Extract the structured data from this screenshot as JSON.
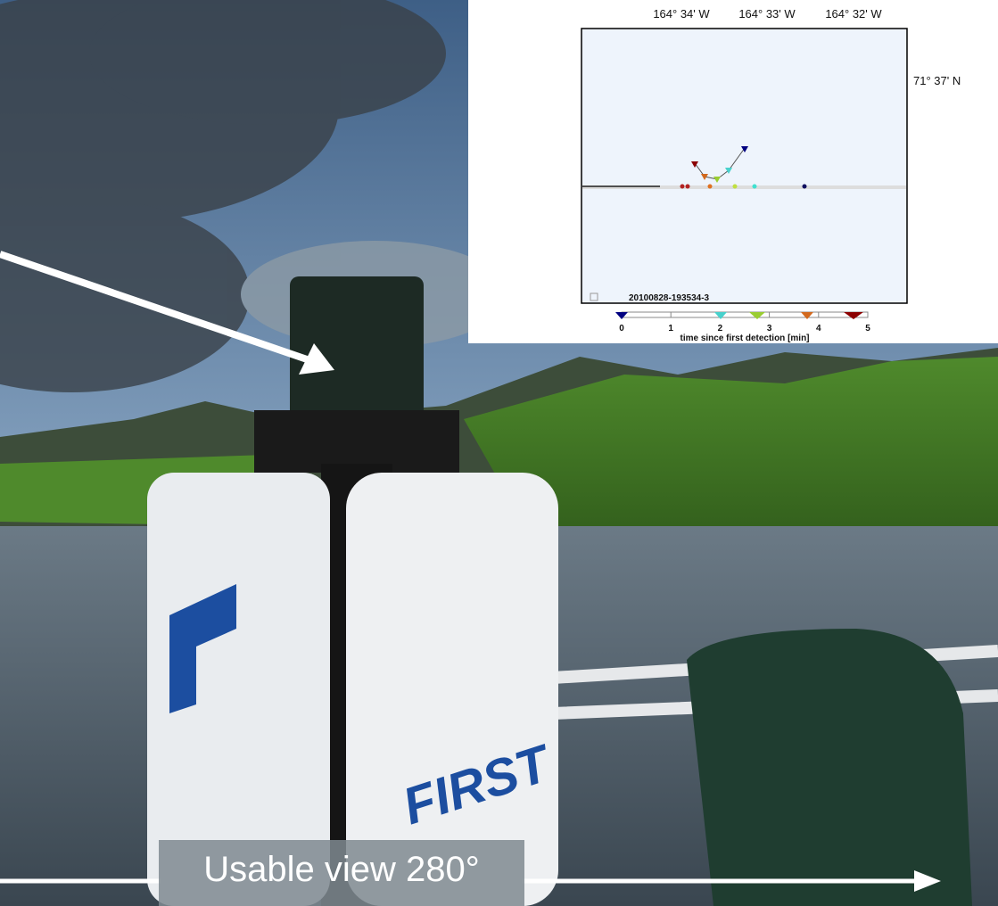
{
  "inset": {
    "lon_labels": [
      "164° 34' W",
      "164° 33' W",
      "164° 32' W"
    ],
    "lat_label": "71° 37' N",
    "id": "20100828-193534-3",
    "colorbar": {
      "ticks": [
        0,
        1,
        2,
        3,
        4,
        5
      ],
      "label": "time since first detection [min]"
    }
  },
  "caption": "Usable view 280°"
}
